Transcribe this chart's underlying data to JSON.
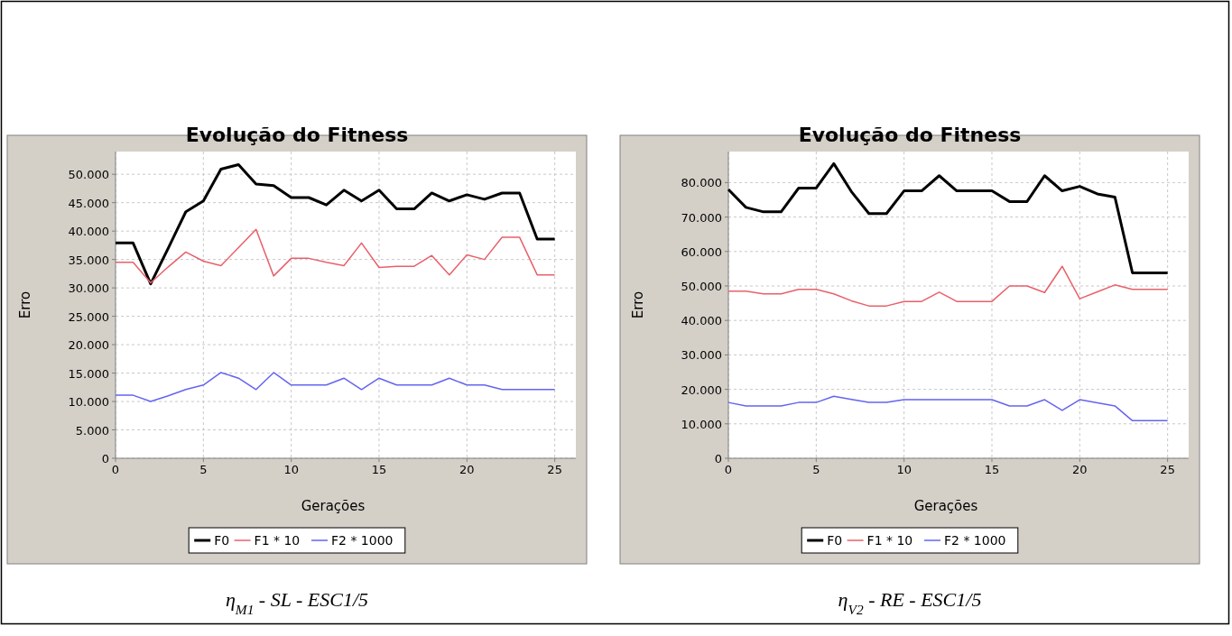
{
  "chart_data": [
    {
      "type": "line",
      "title": "Evolução do Fitness",
      "xlabel": "Gerações",
      "ylabel": "Erro",
      "annotations": [
        "η$_{M1}$ - SL - ESC1/5"
      ],
      "x": [
        0,
        1,
        2,
        3,
        4,
        5,
        6,
        7,
        8,
        9,
        10,
        11,
        12,
        13,
        14,
        15,
        16,
        17,
        18,
        19,
        20,
        21,
        22,
        23,
        24,
        25
      ],
      "series": [
        {
          "name": "F0",
          "color": "#000000",
          "values": [
            37900,
            37900,
            30700,
            37000,
            43400,
            45300,
            50900,
            51700,
            48300,
            48000,
            45900,
            45900,
            44600,
            47200,
            45300,
            47200,
            43900,
            43900,
            46700,
            45300,
            46400,
            45600,
            46700,
            46700,
            38600,
            38600
          ]
        },
        {
          "name": "F1 * 10",
          "color": "#e8606a",
          "values": [
            34500,
            34500,
            30900,
            33700,
            36300,
            34700,
            33900,
            37100,
            40300,
            32100,
            35200,
            35200,
            34500,
            33900,
            37900,
            33600,
            33800,
            33800,
            35700,
            32300,
            35800,
            35000,
            38900,
            38900,
            32300,
            32300
          ]
        },
        {
          "name": "F2 * 1000",
          "color": "#6464f0",
          "values": [
            11100,
            11100,
            10000,
            11000,
            12100,
            12900,
            15100,
            14100,
            12100,
            15100,
            12900,
            12900,
            12900,
            14100,
            12100,
            14100,
            12900,
            12900,
            12900,
            14100,
            12900,
            12900,
            12100,
            12100,
            12100,
            12100
          ]
        }
      ],
      "xlim": [
        0,
        26.2
      ],
      "xticks": [
        0,
        5,
        10,
        15,
        20,
        25
      ],
      "ylim": [
        0,
        54000
      ],
      "yticks": [
        {
          "value": 0,
          "label": "0"
        },
        {
          "value": 5000,
          "label": "5.000"
        },
        {
          "value": 10000,
          "label": "10.000"
        },
        {
          "value": 15000,
          "label": "15.000"
        },
        {
          "value": 20000,
          "label": "20.000"
        },
        {
          "value": 25000,
          "label": "25.000"
        },
        {
          "value": 30000,
          "label": "30.000"
        },
        {
          "value": 35000,
          "label": "35.000"
        },
        {
          "value": 40000,
          "label": "40.000"
        },
        {
          "value": 45000,
          "label": "45.000"
        },
        {
          "value": 50000,
          "label": "50.000"
        }
      ],
      "grid": true,
      "legend": "bottom",
      "marker": "none",
      "line_style": "solid"
    },
    {
      "type": "line",
      "title": "Evolução do Fitness",
      "xlabel": "Gerações",
      "ylabel": "Erro",
      "annotations": [
        "η$_{V2}$ - RE - ESC1/5"
      ],
      "x": [
        0,
        1,
        2,
        3,
        4,
        5,
        6,
        7,
        8,
        9,
        10,
        11,
        12,
        13,
        14,
        15,
        16,
        17,
        18,
        19,
        20,
        21,
        22,
        23,
        24,
        25
      ],
      "series": [
        {
          "name": "F0",
          "color": "#000000",
          "values": [
            78000,
            72800,
            71500,
            71500,
            78400,
            78400,
            85500,
            77400,
            71000,
            71000,
            77600,
            77600,
            82000,
            77600,
            77600,
            77600,
            74500,
            74500,
            82000,
            77600,
            78900,
            76700,
            75800,
            53800,
            53800,
            53800
          ]
        },
        {
          "name": "F1 * 10",
          "color": "#e8606a",
          "values": [
            48500,
            48500,
            47700,
            47700,
            49000,
            49000,
            47700,
            45700,
            44200,
            44200,
            45500,
            45500,
            48200,
            45500,
            45500,
            45500,
            50000,
            50000,
            48100,
            55700,
            46300,
            48300,
            50300,
            49000,
            49000,
            49000
          ]
        },
        {
          "name": "F2 * 1000",
          "color": "#6464f0",
          "values": [
            16200,
            15200,
            15200,
            15200,
            16200,
            16200,
            18000,
            17100,
            16200,
            16200,
            17000,
            17000,
            17000,
            17000,
            17000,
            17000,
            15200,
            15200,
            17000,
            13900,
            17000,
            16100,
            15200,
            10900,
            10900,
            10900
          ]
        }
      ],
      "xlim": [
        0,
        26.2
      ],
      "xticks": [
        0,
        5,
        10,
        15,
        20,
        25
      ],
      "ylim": [
        0,
        89000
      ],
      "yticks": [
        {
          "value": 0,
          "label": "0"
        },
        {
          "value": 10000,
          "label": "10.000"
        },
        {
          "value": 20000,
          "label": "20.000"
        },
        {
          "value": 30000,
          "label": "30.000"
        },
        {
          "value": 40000,
          "label": "40.000"
        },
        {
          "value": 50000,
          "label": "50.000"
        },
        {
          "value": 60000,
          "label": "60.000"
        },
        {
          "value": 70000,
          "label": "70.000"
        },
        {
          "value": 80000,
          "label": "80.000"
        }
      ],
      "grid": true,
      "legend": "bottom",
      "marker": "none",
      "line_style": "solid"
    }
  ]
}
